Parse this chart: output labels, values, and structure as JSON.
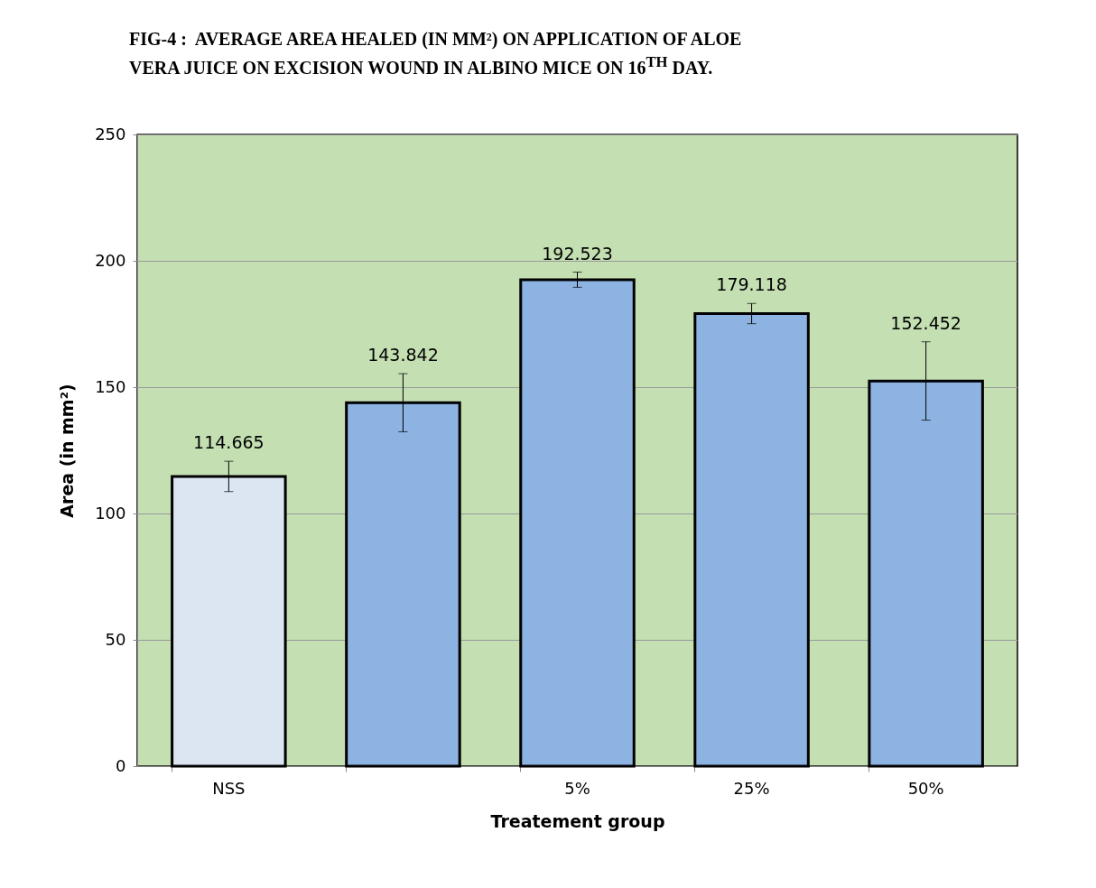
{
  "chart_data": {
    "type": "bar",
    "title": "FIG-4 :  AVERAGE AREA HEALED (IN MM²) ON APPLICATION OF ALOE\nVERA JUICE ON EXCISION WOUND IN ALBINO MICE ON 16$^{TH}$ DAY.",
    "xlabel": "Treatement group",
    "ylabel": "Area (in mm²)",
    "categories": [
      "NSS",
      null,
      "5%",
      "25%",
      "50%"
    ],
    "values": [
      114.665,
      143.842,
      192.523,
      179.118,
      152.452
    ],
    "colors": [
      "#dce6f2",
      "#8db3e2",
      "#8db3e2",
      "#8db3e2",
      "#8db3e2"
    ],
    "errors": [
      6,
      11.5,
      3,
      4,
      15.5
    ],
    "data_labels": true,
    "ylim": [
      0,
      250
    ],
    "yticks": [
      0,
      50,
      100,
      150,
      200,
      250
    ],
    "grid": "y"
  }
}
